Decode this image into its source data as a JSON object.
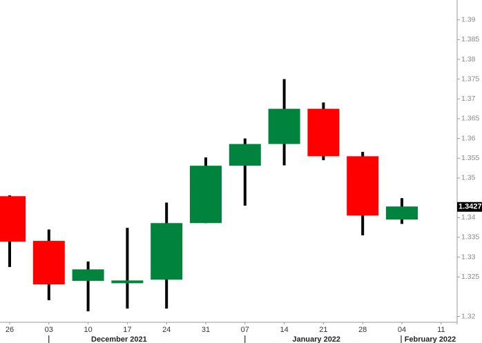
{
  "chart_data": {
    "type": "candlestick",
    "categories": [
      "26",
      "03",
      "10",
      "17",
      "24",
      "31",
      "07",
      "14",
      "21",
      "28",
      "04",
      "11"
    ],
    "open": [
      1.3454,
      1.3341,
      1.324,
      1.3236,
      1.3243,
      1.3386,
      1.3531,
      1.3586,
      1.3675,
      1.3555,
      1.3395,
      null
    ],
    "high": [
      1.3456,
      1.337,
      1.3289,
      1.3374,
      1.3438,
      1.3552,
      1.36,
      1.375,
      1.3691,
      1.3566,
      1.3449,
      null
    ],
    "low": [
      1.3275,
      1.3191,
      1.3163,
      1.317,
      1.317,
      1.3386,
      1.343,
      1.3532,
      1.3545,
      1.3355,
      1.3384,
      null
    ],
    "close": [
      1.3339,
      1.3231,
      1.3269,
      1.3241,
      1.3386,
      1.3531,
      1.3586,
      1.3675,
      1.3555,
      1.3405,
      1.3428,
      null
    ],
    "up_color": "#00843d",
    "down_color": "#ff0000",
    "ylim": [
      1.313,
      1.395
    ],
    "yticks": [
      1.39,
      1.385,
      1.38,
      1.375,
      1.37,
      1.365,
      1.36,
      1.355,
      1.35,
      1.34,
      1.335,
      1.33,
      1.325,
      {
        "value": 1.315,
        "label": "1.32"
      }
    ],
    "last_price": 1.3427,
    "months": [
      "December 2021",
      "January 2022",
      "February 2022"
    ]
  }
}
